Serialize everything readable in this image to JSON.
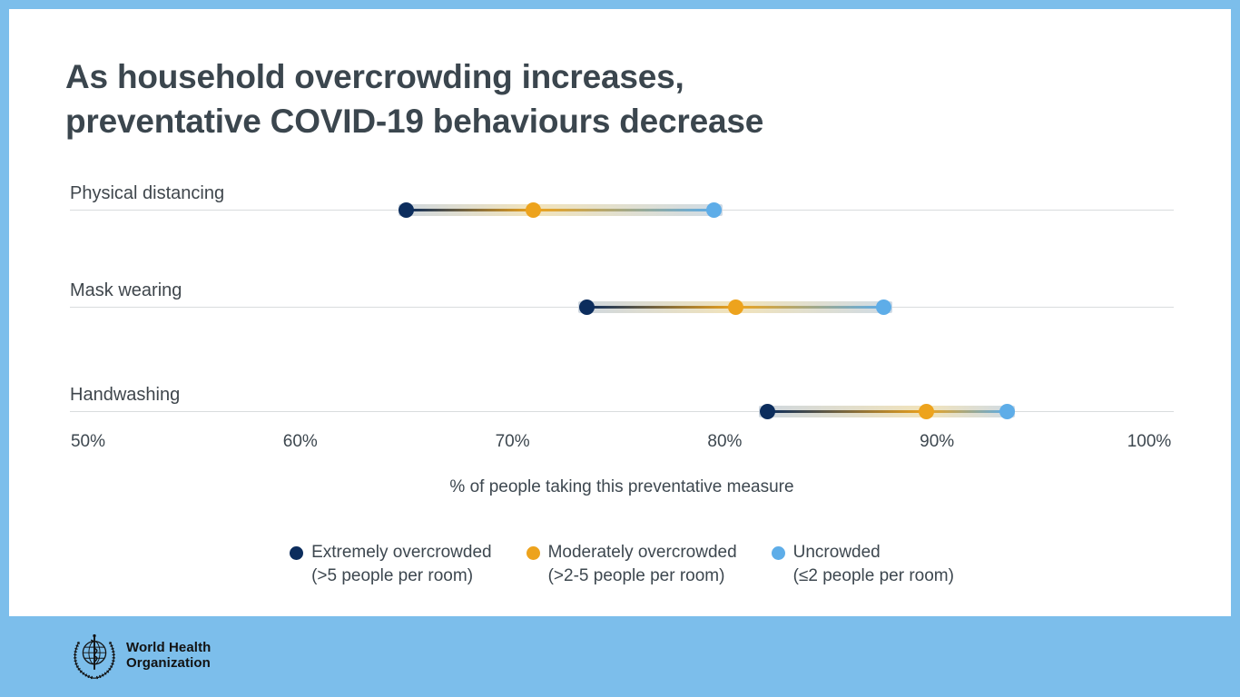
{
  "page": {
    "background_color": "#7cbeeb",
    "card_color": "#ffffff"
  },
  "title": {
    "line1": "As household overcrowding increases,",
    "line2": "preventative COVID-19 behaviours decrease",
    "color": "#3b464e"
  },
  "chart_data": {
    "type": "scatter",
    "subtype": "dumbbell-dot-plot",
    "categories": [
      "Physical distancing",
      "Mask wearing",
      "Handwashing"
    ],
    "series": [
      {
        "name": "Extremely overcrowded (>5 people per room)",
        "color": "#0c2d5d",
        "values": [
          65,
          73.5,
          82
        ]
      },
      {
        "name": "Moderately overcrowded (>2-5 people per room)",
        "color": "#eda31d",
        "values": [
          71,
          80.5,
          89.5
        ]
      },
      {
        "name": "Uncrowded (≤2 people per room)",
        "color": "#5eade8",
        "values": [
          79.5,
          87.5,
          93.3
        ]
      }
    ],
    "xlabel": "% of people taking this preventative measure",
    "x_ticks": [
      {
        "value": 50,
        "label": "50%"
      },
      {
        "value": 60,
        "label": "60%"
      },
      {
        "value": 70,
        "label": "70%"
      },
      {
        "value": 80,
        "label": "80%"
      },
      {
        "value": 90,
        "label": "90%"
      },
      {
        "value": 100,
        "label": "100%"
      }
    ],
    "x_range": [
      50,
      100
    ],
    "grid": "horizontal row baselines only",
    "legend_position": "bottom-center",
    "band_colors": {
      "edge_left": "#c6d0da",
      "mid_warm": "#efdeae",
      "edge_right": "#c6d4e1"
    },
    "gridline_color": "#d9dcde"
  },
  "legend": {
    "items": [
      {
        "label": "Extremely overcrowded",
        "sublabel": "(>5 people per room)",
        "color": "#0c2d5d"
      },
      {
        "label": "Moderately overcrowded",
        "sublabel": "(>2-5 people per room)",
        "color": "#eda31d"
      },
      {
        "label": "Uncrowded",
        "sublabel": "(≤2 people per room)",
        "color": "#5eade8"
      }
    ]
  },
  "footer": {
    "org_line1": "World Health",
    "org_line2": "Organization"
  }
}
